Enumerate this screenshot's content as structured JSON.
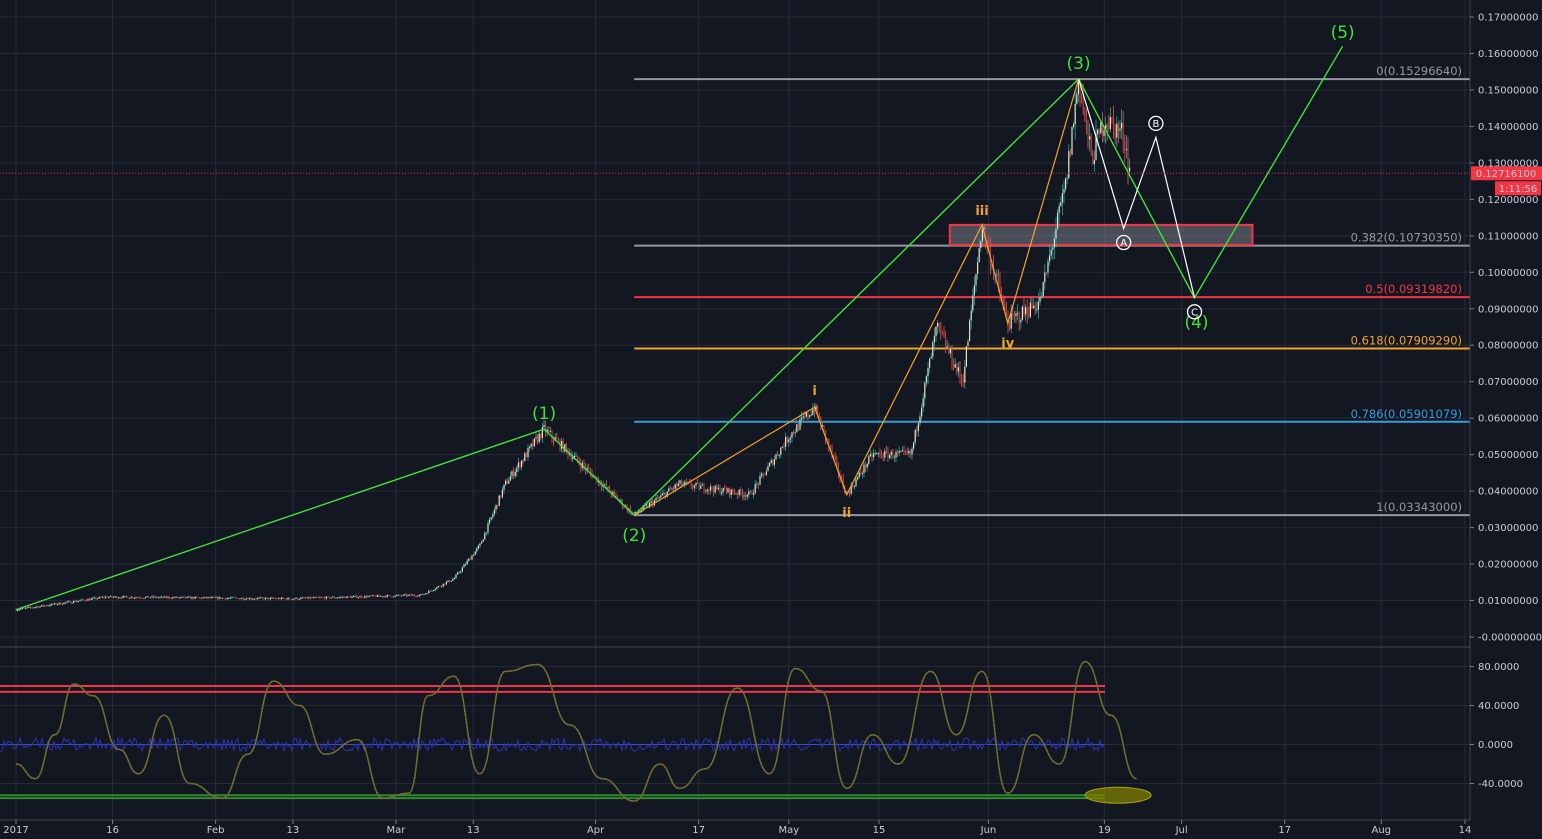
{
  "chart_data": [
    {
      "type": "candlestick",
      "ylim": [
        0,
        0.17
      ],
      "x_ticks": [
        "2017",
        "16",
        "Feb",
        "13",
        "Mar",
        "13",
        "Apr",
        "17",
        "May",
        "15",
        "Jun",
        "19",
        "Jul",
        "17",
        "Aug",
        "14"
      ],
      "y_ticks": [
        "0.17000000",
        "0.16000000",
        "0.15000000",
        "0.14000000",
        "0.13000000",
        "0.12000000",
        "0.11000000",
        "0.10000000",
        "0.09000000",
        "0.08000000",
        "0.07000000",
        "0.06000000",
        "0.05000000",
        "0.04000000",
        "0.03000000",
        "0.02000000",
        "0.01000000",
        "-0.00000000"
      ],
      "last_price": "0.12716100",
      "countdown": "1:11:56",
      "price_path": [
        {
          "x": "2017-01-01",
          "y": 0.0075
        },
        {
          "x": "2017-01-15",
          "y": 0.011
        },
        {
          "x": "2017-02-12",
          "y": 0.0105
        },
        {
          "x": "2017-03-05",
          "y": 0.0115
        },
        {
          "x": "2017-03-10",
          "y": 0.016
        },
        {
          "x": "2017-03-14",
          "y": 0.025
        },
        {
          "x": "2017-03-18",
          "y": 0.042
        },
        {
          "x": "2017-03-24",
          "y": 0.057
        },
        {
          "x": "2017-03-30",
          "y": 0.047
        },
        {
          "x": "2017-04-07",
          "y": 0.0334
        },
        {
          "x": "2017-04-14",
          "y": 0.042
        },
        {
          "x": "2017-04-25",
          "y": 0.039
        },
        {
          "x": "2017-05-01",
          "y": 0.055
        },
        {
          "x": "2017-05-05",
          "y": 0.063
        },
        {
          "x": "2017-05-10",
          "y": 0.039
        },
        {
          "x": "2017-05-14",
          "y": 0.05
        },
        {
          "x": "2017-05-20",
          "y": 0.05
        },
        {
          "x": "2017-05-24",
          "y": 0.085
        },
        {
          "x": "2017-05-28",
          "y": 0.07
        },
        {
          "x": "2017-05-31",
          "y": 0.113
        },
        {
          "x": "2017-06-04",
          "y": 0.086
        },
        {
          "x": "2017-06-09",
          "y": 0.092
        },
        {
          "x": "2017-06-13",
          "y": 0.124
        },
        {
          "x": "2017-06-15",
          "y": 0.153
        },
        {
          "x": "2017-06-17",
          "y": 0.131
        },
        {
          "x": "2017-06-19",
          "y": 0.142
        },
        {
          "x": "2017-06-22",
          "y": 0.138
        },
        {
          "x": "2017-06-23",
          "y": 0.127
        }
      ],
      "fibonacci": [
        {
          "label": "0(0.15296640)",
          "value": 0.1529664,
          "color": "#9598a1"
        },
        {
          "label": "0.382(0.10730350)",
          "value": 0.1073035,
          "color": "#9598a1"
        },
        {
          "label": "0.5(0.09319820)",
          "value": 0.0931982,
          "color": "#f23645"
        },
        {
          "label": "0.618(0.07909290)",
          "value": 0.0790929,
          "color": "#f0a430"
        },
        {
          "label": "0.786(0.05901079)",
          "value": 0.05901079,
          "color": "#3a9bd9"
        },
        {
          "label": "1(0.03343000)",
          "value": 0.03343,
          "color": "#9598a1"
        }
      ],
      "wave_labels": [
        {
          "label": "(1)",
          "x": "2017-03-24",
          "y": 0.057,
          "color": "#44e03a"
        },
        {
          "label": "(2)",
          "x": "2017-04-07",
          "y": 0.0334,
          "color": "#44e03a"
        },
        {
          "label": "(3)",
          "x": "2017-06-15",
          "y": 0.153,
          "color": "#44e03a"
        },
        {
          "label": "(4)",
          "x": "2017-07-03",
          "y": 0.093,
          "color": "#44e03a"
        },
        {
          "label": "(5)",
          "x": "2017-07-26",
          "y": 0.162,
          "color": "#44e03a"
        },
        {
          "label": "i",
          "x": "2017-05-05",
          "y": 0.063,
          "color": "#f0a430"
        },
        {
          "label": "ii",
          "x": "2017-05-10",
          "y": 0.039,
          "color": "#f0a430"
        },
        {
          "label": "iii",
          "x": "2017-05-31",
          "y": 0.113,
          "color": "#f0a430"
        },
        {
          "label": "iv",
          "x": "2017-06-04",
          "y": 0.086,
          "color": "#f0a430"
        },
        {
          "label": "A",
          "x": "2017-06-22",
          "y": 0.112,
          "color": "#ffffff"
        },
        {
          "label": "B",
          "x": "2017-06-27",
          "y": 0.137,
          "color": "#ffffff"
        },
        {
          "label": "C",
          "x": "2017-07-03",
          "y": 0.093,
          "color": "#ffffff"
        }
      ],
      "green_wave_path": [
        {
          "x": "2017-01-01",
          "y": 0.0075
        },
        {
          "x": "2017-03-24",
          "y": 0.057
        },
        {
          "x": "2017-04-07",
          "y": 0.0334
        },
        {
          "x": "2017-06-15",
          "y": 0.153
        },
        {
          "x": "2017-07-03",
          "y": 0.093
        },
        {
          "x": "2017-07-26",
          "y": 0.162
        }
      ],
      "orange_wave_path": [
        {
          "x": "2017-04-07",
          "y": 0.0334
        },
        {
          "x": "2017-05-05",
          "y": 0.063
        },
        {
          "x": "2017-05-10",
          "y": 0.039
        },
        {
          "x": "2017-05-31",
          "y": 0.113
        },
        {
          "x": "2017-06-04",
          "y": 0.086
        },
        {
          "x": "2017-06-15",
          "y": 0.153
        }
      ],
      "abc_path": [
        {
          "x": "2017-06-15",
          "y": 0.153
        },
        {
          "x": "2017-06-22",
          "y": 0.112
        },
        {
          "x": "2017-06-27",
          "y": 0.137
        },
        {
          "x": "2017-07-03",
          "y": 0.093
        }
      ],
      "zone": {
        "x_start": "2017-05-26",
        "x_end": "2017-07-12",
        "y_low": 0.1075,
        "y_high": 0.113,
        "color": "#f23645"
      },
      "gridlines": true
    },
    {
      "type": "line",
      "name": "oscillator",
      "ylim": [
        -60,
        95
      ],
      "y_ticks": [
        "80.0000",
        "40.0000",
        "0.0000",
        "-40.0000"
      ],
      "levels": [
        {
          "value": 60,
          "color": "#f23645"
        },
        {
          "value": 54,
          "color": "#f23645"
        },
        {
          "value": -52,
          "color": "#2e8b2e"
        },
        {
          "value": -55,
          "color": "#2e8b2e"
        }
      ],
      "osc_points": [
        {
          "x": "2017-01-01",
          "y": -20
        },
        {
          "x": "2017-01-04",
          "y": -35
        },
        {
          "x": "2017-01-07",
          "y": 10
        },
        {
          "x": "2017-01-10",
          "y": 62
        },
        {
          "x": "2017-01-13",
          "y": 50
        },
        {
          "x": "2017-01-17",
          "y": -5
        },
        {
          "x": "2017-01-20",
          "y": -30
        },
        {
          "x": "2017-01-24",
          "y": 30
        },
        {
          "x": "2017-01-28",
          "y": -40
        },
        {
          "x": "2017-02-02",
          "y": -55
        },
        {
          "x": "2017-02-06",
          "y": -10
        },
        {
          "x": "2017-02-10",
          "y": 65
        },
        {
          "x": "2017-02-14",
          "y": 40
        },
        {
          "x": "2017-02-18",
          "y": -10
        },
        {
          "x": "2017-02-23",
          "y": 5
        },
        {
          "x": "2017-02-27",
          "y": -55
        },
        {
          "x": "2017-03-03",
          "y": -50
        },
        {
          "x": "2017-03-06",
          "y": 50
        },
        {
          "x": "2017-03-10",
          "y": 70
        },
        {
          "x": "2017-03-14",
          "y": -30
        },
        {
          "x": "2017-03-18",
          "y": 75
        },
        {
          "x": "2017-03-23",
          "y": 82
        },
        {
          "x": "2017-03-28",
          "y": 20
        },
        {
          "x": "2017-04-02",
          "y": -35
        },
        {
          "x": "2017-04-07",
          "y": -58
        },
        {
          "x": "2017-04-11",
          "y": -20
        },
        {
          "x": "2017-04-14",
          "y": -45
        },
        {
          "x": "2017-04-18",
          "y": -25
        },
        {
          "x": "2017-04-23",
          "y": 58
        },
        {
          "x": "2017-04-28",
          "y": -30
        },
        {
          "x": "2017-05-02",
          "y": 78
        },
        {
          "x": "2017-05-06",
          "y": 55
        },
        {
          "x": "2017-05-10",
          "y": -45
        },
        {
          "x": "2017-05-14",
          "y": 10
        },
        {
          "x": "2017-05-18",
          "y": -20
        },
        {
          "x": "2017-05-23",
          "y": 75
        },
        {
          "x": "2017-05-27",
          "y": 10
        },
        {
          "x": "2017-05-31",
          "y": 75
        },
        {
          "x": "2017-06-04",
          "y": -50
        },
        {
          "x": "2017-06-08",
          "y": 10
        },
        {
          "x": "2017-06-12",
          "y": -20
        },
        {
          "x": "2017-06-16",
          "y": 85
        },
        {
          "x": "2017-06-20",
          "y": 30
        },
        {
          "x": "2017-06-24",
          "y": -35
        }
      ],
      "green_signal_zone": {
        "x": "2017-07-02",
        "y": -52
      }
    }
  ]
}
